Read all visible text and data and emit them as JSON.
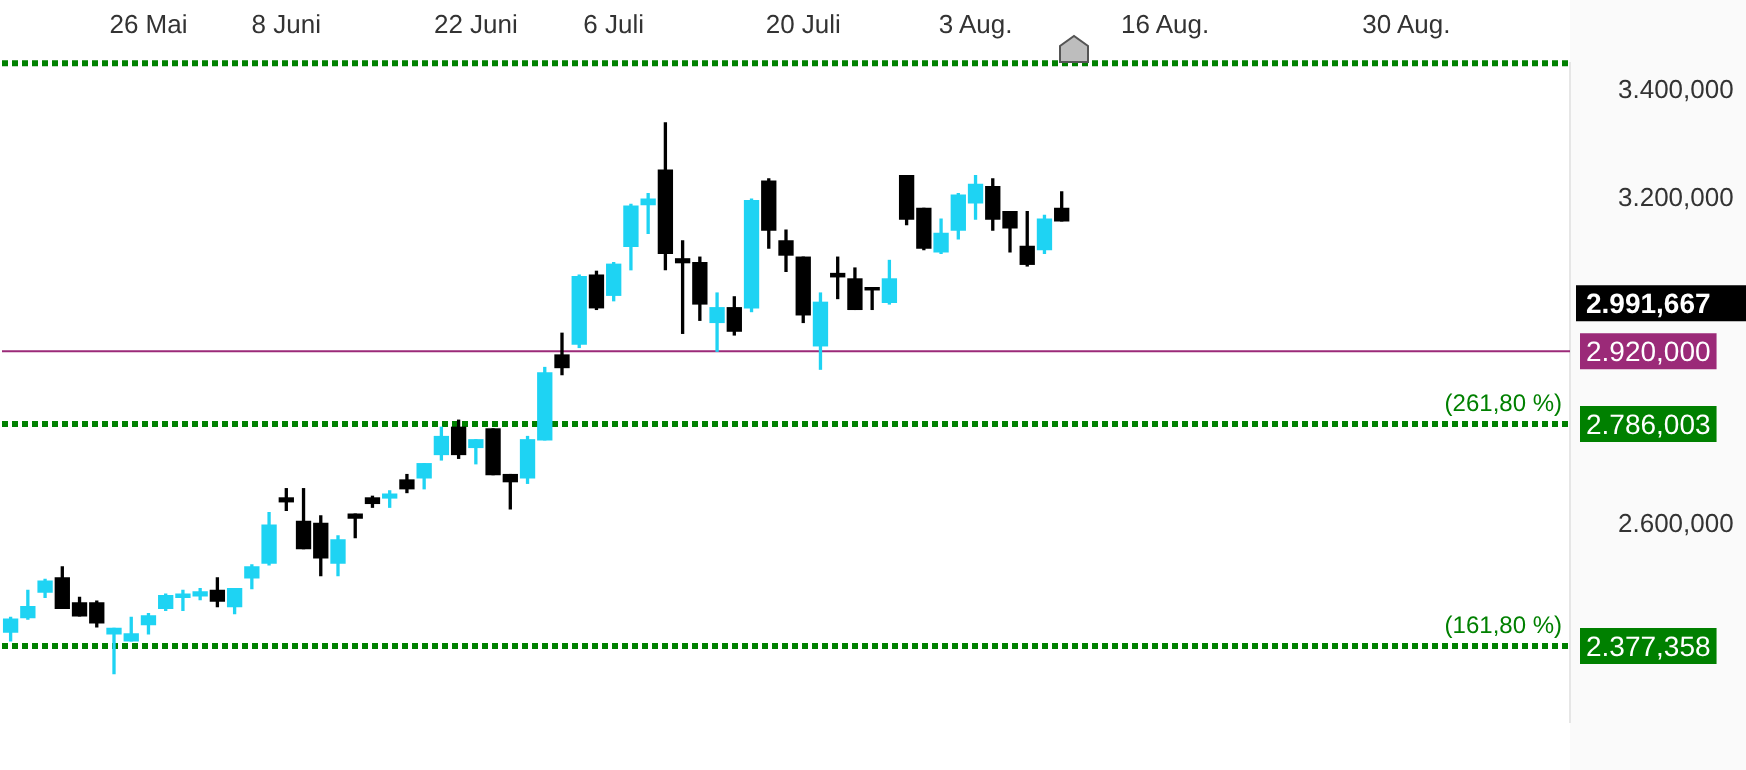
{
  "chart_data": {
    "type": "candlestick",
    "categories": [
      null,
      null,
      null,
      null,
      null,
      null,
      null,
      null,
      "26 Mai",
      null,
      null,
      null,
      null,
      null,
      null,
      null,
      "8 Juni",
      null,
      null,
      null,
      null,
      null,
      null,
      null,
      null,
      null,
      null,
      "22 Juni",
      null,
      null,
      null,
      null,
      null,
      null,
      null,
      "6 Juli",
      null,
      null,
      null,
      null,
      null,
      null,
      null,
      null,
      null,
      null,
      "20 Juli",
      null,
      null,
      null,
      null,
      null,
      null,
      null,
      null,
      null,
      "3 Aug.",
      null,
      null,
      null,
      null,
      null,
      null,
      null,
      null,
      null,
      null,
      "16 Aug.",
      null,
      null,
      null,
      null,
      null,
      null,
      null,
      null,
      null,
      null,
      null,
      null,
      null,
      "30 Aug.",
      null,
      null,
      null,
      null,
      null,
      null,
      null,
      null,
      null
    ],
    "ohlc": [
      [
        2403,
        2430,
        2387,
        2427
      ],
      [
        2430,
        2480,
        2427,
        2450
      ],
      [
        2477,
        2500,
        2467,
        2497
      ],
      [
        2503,
        2523,
        2447,
        2447
      ],
      [
        2457,
        2467,
        2433,
        2433
      ],
      [
        2457,
        2460,
        2413,
        2420
      ],
      [
        2400,
        2410,
        2327,
        2410
      ],
      [
        2387,
        2430,
        2387,
        2400
      ],
      [
        2417,
        2437,
        2400,
        2433
      ],
      [
        2447,
        2473,
        2443,
        2470
      ],
      [
        2467,
        2480,
        2443,
        2473
      ],
      [
        2470,
        2483,
        2463,
        2477
      ],
      [
        2480,
        2503,
        2450,
        2460
      ],
      [
        2450,
        2483,
        2437,
        2483
      ],
      [
        2503,
        2527,
        2483,
        2523
      ],
      [
        2530,
        2623,
        2527,
        2600
      ],
      [
        2650,
        2667,
        2627,
        2643
      ],
      [
        2607,
        2667,
        2557,
        2557
      ],
      [
        2603,
        2617,
        2507,
        2540
      ],
      [
        2530,
        2580,
        2507,
        2573
      ],
      [
        2620,
        2620,
        2577,
        2613
      ],
      [
        2650,
        2653,
        2633,
        2640
      ],
      [
        2650,
        2663,
        2633,
        2657
      ],
      [
        2683,
        2693,
        2660,
        2667
      ],
      [
        2687,
        2713,
        2667,
        2713
      ],
      [
        2730,
        2780,
        2720,
        2763
      ],
      [
        2780,
        2793,
        2723,
        2730
      ],
      [
        2743,
        2757,
        2713,
        2757
      ],
      [
        2777,
        2777,
        2693,
        2693
      ],
      [
        2693,
        2693,
        2630,
        2680
      ],
      [
        2687,
        2763,
        2677,
        2757
      ],
      [
        2757,
        2890,
        2757,
        2880
      ],
      [
        2913,
        2953,
        2877,
        2890
      ],
      [
        2933,
        3060,
        2927,
        3057
      ],
      [
        3060,
        3067,
        2997,
        3000
      ],
      [
        3023,
        3083,
        3013,
        3080
      ],
      [
        3113,
        3190,
        3070,
        3187
      ],
      [
        3190,
        3210,
        3137,
        3200
      ],
      [
        3253,
        3340,
        3070,
        3100
      ],
      [
        3090,
        3123,
        2953,
        3083
      ],
      [
        3083,
        3093,
        2977,
        3007
      ],
      [
        2973,
        3027,
        2920,
        3000
      ],
      [
        3000,
        3020,
        2950,
        2957
      ],
      [
        3000,
        3200,
        2993,
        3197
      ],
      [
        3233,
        3237,
        3110,
        3143
      ],
      [
        3123,
        3143,
        3067,
        3097
      ],
      [
        3093,
        3093,
        2973,
        2987
      ],
      [
        2930,
        3027,
        2887,
        3010
      ],
      [
        3063,
        3093,
        3017,
        3057
      ],
      [
        3053,
        3073,
        2997,
        2997
      ],
      [
        3037,
        3037,
        2997,
        3033
      ],
      [
        3010,
        3087,
        3007,
        3053
      ],
      [
        3243,
        3243,
        3153,
        3163
      ],
      [
        3183,
        3183,
        3107,
        3110
      ],
      [
        3103,
        3163,
        3100,
        3137
      ],
      [
        3143,
        3210,
        3127,
        3207
      ],
      [
        3193,
        3243,
        3163,
        3227
      ],
      [
        3223,
        3237,
        3143,
        3163
      ],
      [
        3177,
        3177,
        3103,
        3147
      ],
      [
        3113,
        3177,
        3077,
        3080
      ],
      [
        3107,
        3170,
        3100,
        3163
      ],
      [
        3183,
        3213,
        3160,
        3160
      ],
      null,
      null,
      null,
      null,
      null,
      null,
      null,
      null,
      null,
      null,
      null,
      null,
      null,
      null,
      null,
      null,
      null,
      null,
      null,
      null,
      null,
      null,
      null,
      null,
      null,
      null,
      null,
      null,
      null
    ],
    "colors": [
      "#1ed3f3",
      "#1ed3f3",
      "#1ed3f3",
      "#000000",
      "#000000",
      "#000000",
      "#1ed3f3",
      "#1ed3f3",
      "#1ed3f3",
      "#1ed3f3",
      "#1ed3f3",
      "#1ed3f3",
      "#000000",
      "#1ed3f3",
      "#1ed3f3",
      "#1ed3f3",
      "#000000",
      "#000000",
      "#000000",
      "#1ed3f3",
      "#000000",
      "#000000",
      "#1ed3f3",
      "#000000",
      "#1ed3f3",
      "#1ed3f3",
      "#000000",
      "#1ed3f3",
      "#000000",
      "#000000",
      "#1ed3f3",
      "#1ed3f3",
      "#000000",
      "#1ed3f3",
      "#000000",
      "#1ed3f3",
      "#1ed3f3",
      "#1ed3f3",
      "#000000",
      "#000000",
      "#000000",
      "#1ed3f3",
      "#000000",
      "#1ed3f3",
      "#000000",
      "#000000",
      "#000000",
      "#1ed3f3",
      "#000000",
      "#000000",
      "#000000",
      "#1ed3f3",
      "#000000",
      "#000000",
      "#1ed3f3",
      "#1ed3f3",
      "#1ed3f3",
      "#000000",
      "#000000",
      "#000000",
      "#1ed3f3",
      "#000000",
      null,
      null,
      null,
      null,
      null,
      null,
      null,
      null,
      null,
      null,
      null,
      null,
      null,
      null,
      null,
      null,
      null,
      null,
      null,
      null,
      null,
      null,
      null,
      null,
      null,
      null,
      null,
      null,
      null
    ],
    "ylim": [
      2237,
      3450
    ],
    "yticks": [
      {
        "value": 2600,
        "label": "2.600,000"
      },
      {
        "value": 3200,
        "label": "3.200,000"
      },
      {
        "value": 3400,
        "label": "3.400,000"
      }
    ],
    "ref_lines": [
      {
        "axis": "y",
        "value": 3450,
        "color": "#008000",
        "line_style": "dotted"
      },
      {
        "axis": "y",
        "value": 2920,
        "label": "2.920,000",
        "color": "#9b2a78",
        "line_style": "solid"
      },
      {
        "axis": "y",
        "value": 2786.003,
        "label": "2.786,003",
        "color": "#008000",
        "line_style": "dotted"
      },
      {
        "axis": "y",
        "value": 2377.358,
        "label": "2.377,358",
        "color": "#008000",
        "line_style": "dotted"
      }
    ],
    "annotations": [
      "2.991,667",
      "(261,80 %)",
      "(161,80 %)"
    ]
  }
}
